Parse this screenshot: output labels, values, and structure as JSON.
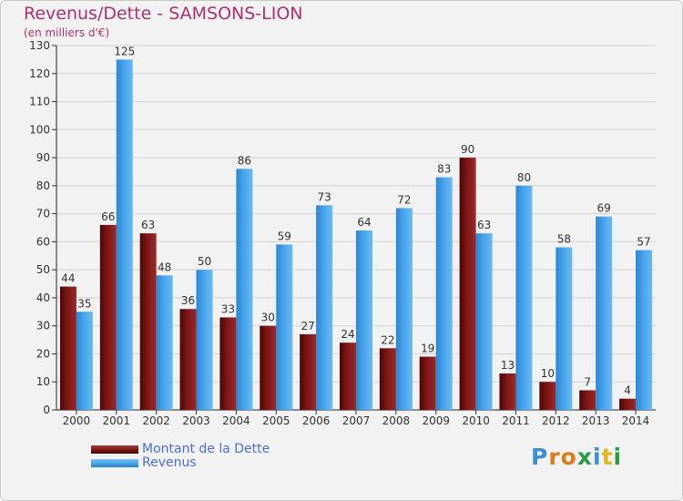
{
  "title": "Revenus/Dette - SAMSONS-LION",
  "subtitle": "(en milliers d'€)",
  "logo_text": "Proxiti",
  "colors": {
    "title": "#b0306a",
    "dette": "#7a1212",
    "revenus": "#3d9ee6",
    "legend_text": "#4a6fdc"
  },
  "legend": [
    {
      "label": "Montant de la Dette",
      "color": "#7a1212"
    },
    {
      "label": "Revenus",
      "color": "#3d9ee6"
    }
  ],
  "chart_data": {
    "type": "bar",
    "title": "Revenus/Dette - SAMSONS-LION",
    "subtitle": "(en milliers d'€)",
    "categories": [
      "2000",
      "2001",
      "2002",
      "2003",
      "2004",
      "2005",
      "2006",
      "2007",
      "2008",
      "2009",
      "2010",
      "2011",
      "2012",
      "2013",
      "2014"
    ],
    "series": [
      {
        "name": "Montant de la Dette",
        "values": [
          44,
          66,
          63,
          36,
          33,
          30,
          27,
          24,
          22,
          19,
          90,
          13,
          10,
          7,
          4
        ]
      },
      {
        "name": "Revenus",
        "values": [
          35,
          125,
          48,
          50,
          86,
          59,
          73,
          64,
          72,
          83,
          63,
          80,
          58,
          69,
          57
        ]
      }
    ],
    "ylim": [
      0,
      130
    ],
    "yticks": [
      0,
      10,
      20,
      30,
      40,
      50,
      60,
      70,
      80,
      90,
      100,
      110,
      120,
      130
    ],
    "grid": true,
    "legend_position": "bottom-left"
  }
}
